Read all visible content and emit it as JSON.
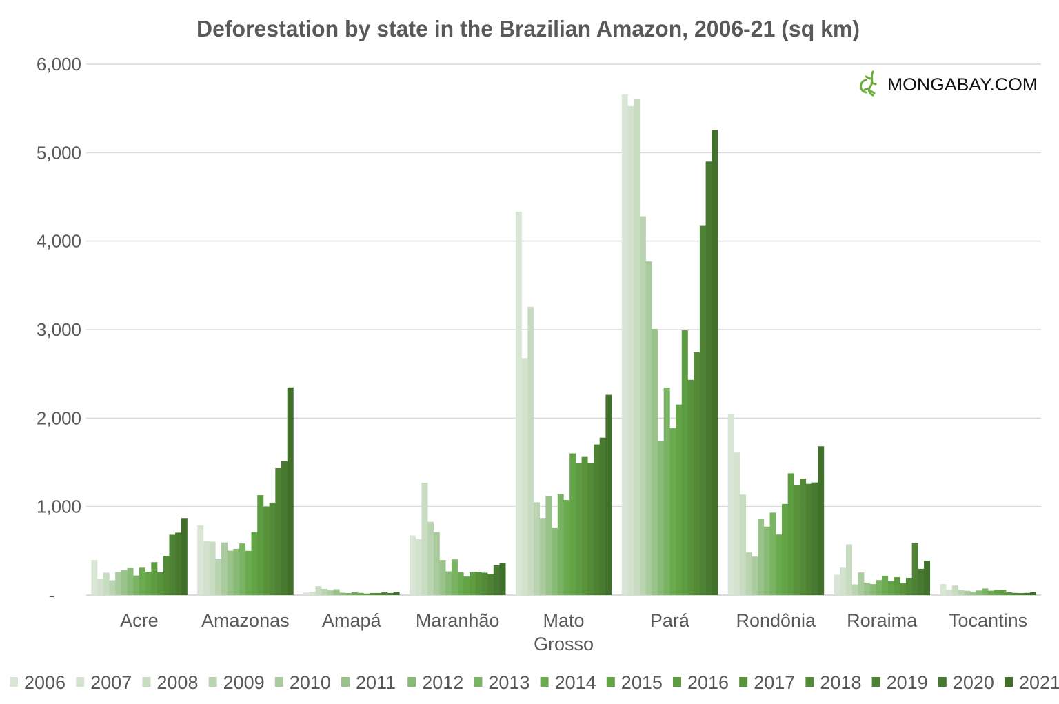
{
  "chart_data": {
    "type": "bar",
    "title": "Deforestation by state in the Brazilian Amazon, 2006-21 (sq km)",
    "watermark": "MONGABAY.COM",
    "xlabel": "",
    "ylabel": "",
    "ylim": [
      0,
      6000
    ],
    "yticks": [
      0,
      1000,
      2000,
      3000,
      4000,
      5000,
      6000
    ],
    "ytick_labels": [
      "-",
      "1,000",
      "2,000",
      "3,000",
      "4,000",
      "5,000",
      "6,000"
    ],
    "grid": true,
    "legend_position": "bottom",
    "categories": [
      "Acre",
      "Amazonas",
      "Amapá",
      "Maranhão",
      "Mato Grosso",
      "Pará",
      "Rondônia",
      "Roraima",
      "Tocantins"
    ],
    "series": [
      {
        "name": "2006",
        "color": "#d9e6d5",
        "values": [
          398,
          788,
          30,
          674,
          4333,
          5659,
          2049,
          231,
          124
        ]
      },
      {
        "name": "2007",
        "color": "#d2e2cd",
        "values": [
          184,
          610,
          39,
          631,
          2678,
          5526,
          1611,
          309,
          63
        ]
      },
      {
        "name": "2008",
        "color": "#c8dcc2",
        "values": [
          254,
          604,
          100,
          1271,
          3258,
          5607,
          1136,
          574,
          107
        ]
      },
      {
        "name": "2009",
        "color": "#bad4b2",
        "values": [
          167,
          405,
          70,
          828,
          1049,
          4281,
          482,
          121,
          61
        ]
      },
      {
        "name": "2010",
        "color": "#a9cb9e",
        "values": [
          259,
          595,
          53,
          712,
          871,
          3770,
          435,
          256,
          49
        ]
      },
      {
        "name": "2011",
        "color": "#9ac38c",
        "values": [
          280,
          502,
          66,
          396,
          1120,
          3008,
          865,
          141,
          40
        ]
      },
      {
        "name": "2012",
        "color": "#88bb76",
        "values": [
          305,
          523,
          27,
          269,
          757,
          1741,
          773,
          124,
          52
        ]
      },
      {
        "name": "2013",
        "color": "#79b363",
        "values": [
          221,
          583,
          23,
          403,
          1139,
          2346,
          932,
          170,
          74
        ]
      },
      {
        "name": "2014",
        "color": "#6aab4f",
        "values": [
          309,
          500,
          31,
          257,
          1075,
          1887,
          684,
          219,
          50
        ]
      },
      {
        "name": "2015",
        "color": "#62a446",
        "values": [
          264,
          712,
          25,
          209,
          1601,
          2153,
          1030,
          156,
          57
        ]
      },
      {
        "name": "2016",
        "color": "#5d9c40",
        "values": [
          372,
          1129,
          17,
          258,
          1489,
          2992,
          1376,
          202,
          58
        ]
      },
      {
        "name": "2017",
        "color": "#58933c",
        "values": [
          257,
          1001,
          24,
          265,
          1561,
          2433,
          1243,
          132,
          31
        ]
      },
      {
        "name": "2018",
        "color": "#528a38",
        "values": [
          444,
          1045,
          24,
          253,
          1490,
          2744,
          1316,
          195,
          25
        ]
      },
      {
        "name": "2019",
        "color": "#4d8234",
        "values": [
          682,
          1434,
          32,
          237,
          1702,
          4172,
          1257,
          590,
          23
        ]
      },
      {
        "name": "2020",
        "color": "#477a30",
        "values": [
          706,
          1512,
          24,
          336,
          1779,
          4899,
          1273,
          297,
          25
        ]
      },
      {
        "name": "2021",
        "color": "#41702b",
        "values": [
          871,
          2347,
          37,
          363,
          2263,
          5257,
          1681,
          386,
          37
        ]
      }
    ]
  }
}
